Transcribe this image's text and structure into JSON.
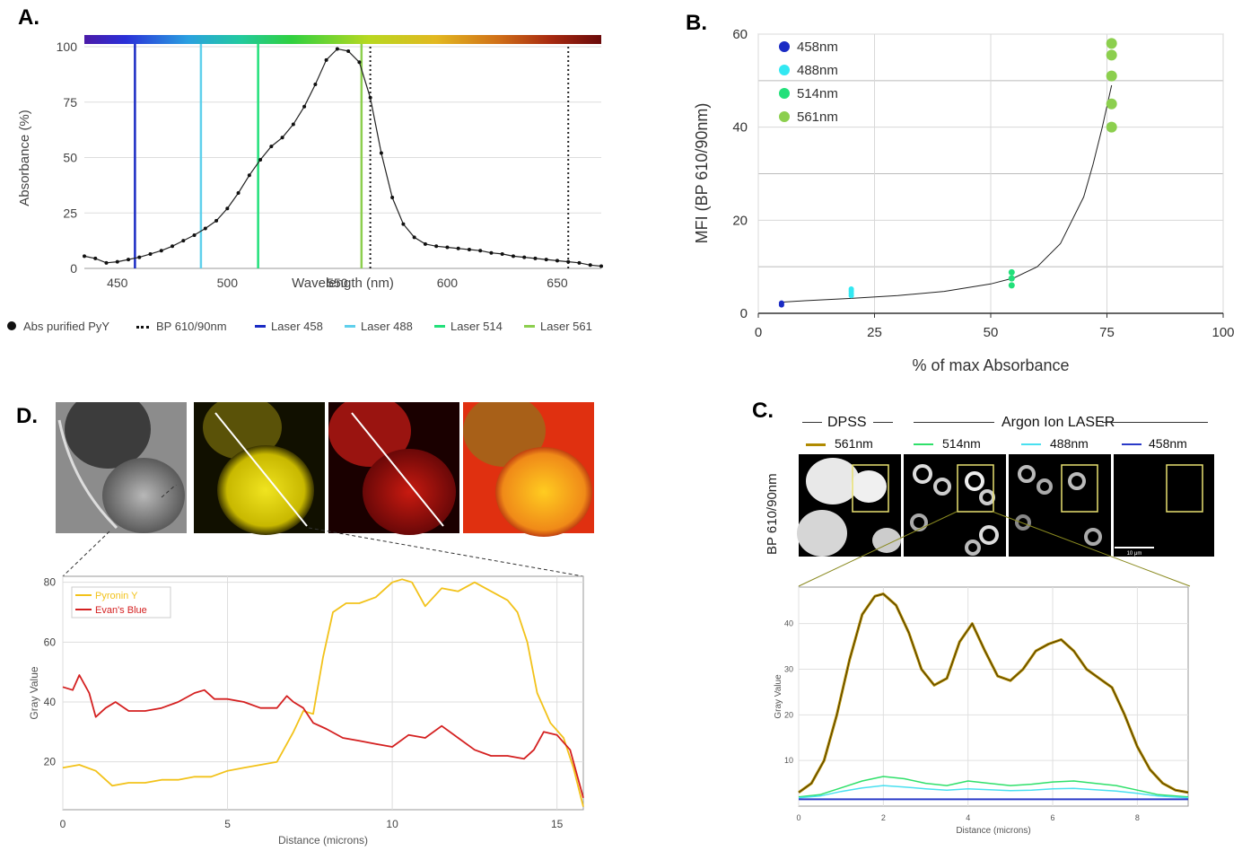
{
  "panels": {
    "a": "A.",
    "b": "B.",
    "c": "C.",
    "d": "D."
  },
  "colors": {
    "laser458": "#1a2bc4",
    "laser488": "#5fd0ec",
    "laser514": "#22e07a",
    "laser561": "#8ccf4e",
    "pyronin": "#f2c21a",
    "evans": "#d42020",
    "trace561": "#b08a00",
    "trace514": "#2fe06a",
    "trace488": "#49e0f0",
    "trace458": "#2a3ac8"
  },
  "chart_data": [
    {
      "id": "A",
      "type": "line",
      "xlabel": "Wavelength (nm)",
      "ylabel": "Absorbance (%)",
      "xlim": [
        435,
        670
      ],
      "ylim": [
        0,
        100
      ],
      "xticks": [
        "450",
        "500",
        "550",
        "600",
        "650"
      ],
      "yticks": [
        "0",
        "25",
        "50",
        "75",
        "100"
      ],
      "grid": true,
      "legend_position": "bottom",
      "legend": [
        "Abs purified PyY",
        "BP  610/90nm",
        "Laser 458",
        "Laser 488",
        "Laser 514",
        "Laser 561"
      ],
      "series": [
        {
          "name": "Abs purified PyY",
          "x": [
            435,
            440,
            445,
            450,
            455,
            460,
            465,
            470,
            475,
            480,
            485,
            490,
            495,
            500,
            505,
            510,
            515,
            520,
            525,
            530,
            535,
            540,
            545,
            550,
            555,
            560,
            565,
            570,
            575,
            580,
            585,
            590,
            595,
            600,
            605,
            610,
            615,
            620,
            625,
            630,
            635,
            640,
            645,
            650,
            655,
            660,
            665,
            670
          ],
          "y": [
            5.5,
            4.5,
            2.5,
            3,
            4,
            5,
            6.5,
            8,
            10,
            12.5,
            15,
            18,
            21.5,
            27,
            34,
            42,
            49,
            55,
            59,
            65,
            73,
            83,
            94,
            99,
            98,
            93,
            77,
            52,
            32,
            20,
            14,
            11,
            10,
            9.5,
            9,
            8.5,
            8,
            7,
            6.5,
            5.5,
            5,
            4.5,
            4,
            3.5,
            3,
            2.5,
            1.5,
            1
          ]
        }
      ],
      "vlines": [
        {
          "name": "Laser 458",
          "x": 458
        },
        {
          "name": "Laser 488",
          "x": 488
        },
        {
          "name": "Laser 514",
          "x": 514
        },
        {
          "name": "Laser 561",
          "x": 561
        },
        {
          "name": "BP  610/90nm",
          "x": 565
        },
        {
          "name": "BP  610/90nm",
          "x": 655
        }
      ]
    },
    {
      "id": "B",
      "type": "scatter",
      "xlabel": "% of max Absorbance",
      "ylabel": "MFI (BP 610/90nm)",
      "xlim": [
        0,
        100
      ],
      "ylim": [
        0,
        60
      ],
      "xticks": [
        "0",
        "25",
        "50",
        "75",
        "100"
      ],
      "yticks": [
        "0",
        "20",
        "40",
        "60"
      ],
      "grid": true,
      "legend_position": "top-left",
      "series": [
        {
          "name": "458nm",
          "x": [
            5,
            5
          ],
          "y": [
            1.8,
            2.2
          ]
        },
        {
          "name": "488nm",
          "x": [
            20,
            20,
            20,
            20
          ],
          "y": [
            3.8,
            4.3,
            4.8,
            5.2
          ]
        },
        {
          "name": "514nm",
          "x": [
            54.5,
            54.5,
            54.5
          ],
          "y": [
            6,
            7.5,
            8.8
          ]
        },
        {
          "name": "561nm",
          "x": [
            76,
            76,
            76,
            76,
            76
          ],
          "y": [
            40,
            45,
            51,
            55.5,
            58
          ]
        }
      ],
      "fit_curve": {
        "x": [
          5,
          10,
          20,
          30,
          40,
          50,
          55,
          60,
          65,
          70,
          72,
          74,
          76
        ],
        "y": [
          2.4,
          2.7,
          3.2,
          3.8,
          4.7,
          6.3,
          7.6,
          10,
          15,
          25,
          32,
          40,
          49
        ]
      }
    },
    {
      "id": "C",
      "type": "line",
      "xlabel": "Distance (microns)",
      "ylabel": "Gray Value",
      "xlim": [
        0,
        9.2
      ],
      "ylim": [
        0,
        48
      ],
      "xticks": [
        "0",
        "2",
        "4",
        "6",
        "8"
      ],
      "yticks": [
        "10",
        "20",
        "30",
        "40"
      ],
      "grid": true,
      "series": [
        {
          "name": "561nm",
          "x": [
            0,
            0.3,
            0.6,
            0.9,
            1.2,
            1.5,
            1.8,
            2.0,
            2.3,
            2.6,
            2.9,
            3.2,
            3.5,
            3.8,
            4.1,
            4.4,
            4.7,
            5.0,
            5.3,
            5.6,
            5.9,
            6.2,
            6.5,
            6.8,
            7.1,
            7.4,
            7.7,
            8.0,
            8.3,
            8.6,
            8.9,
            9.2
          ],
          "y": [
            3,
            5,
            10,
            20,
            32,
            42,
            46,
            46.5,
            44,
            38,
            30,
            26.5,
            28,
            36,
            40,
            34,
            28.5,
            27.5,
            30,
            34,
            35.5,
            36.5,
            34,
            30,
            28,
            26,
            20,
            13,
            8,
            5,
            3.5,
            3
          ]
        },
        {
          "name": "514nm",
          "x": [
            0,
            0.5,
            1.0,
            1.5,
            2.0,
            2.5,
            3.0,
            3.5,
            4.0,
            4.5,
            5.0,
            5.5,
            6.0,
            6.5,
            7.0,
            7.5,
            8.0,
            8.5,
            9.2
          ],
          "y": [
            2,
            2.5,
            4,
            5.5,
            6.5,
            6,
            5,
            4.5,
            5.5,
            5,
            4.5,
            4.8,
            5.3,
            5.5,
            5,
            4.5,
            3.5,
            2.5,
            2
          ]
        },
        {
          "name": "488nm",
          "x": [
            0,
            0.5,
            1.0,
            1.5,
            2.0,
            2.5,
            3.0,
            3.5,
            4.0,
            4.5,
            5.0,
            5.5,
            6.0,
            6.5,
            7.0,
            7.5,
            8.0,
            8.5,
            9.2
          ],
          "y": [
            1.8,
            2.2,
            3.2,
            4,
            4.5,
            4.2,
            3.8,
            3.5,
            3.8,
            3.6,
            3.4,
            3.5,
            3.8,
            3.9,
            3.6,
            3.3,
            2.8,
            2.2,
            1.8
          ]
        },
        {
          "name": "458nm",
          "x": [
            0,
            9.2
          ],
          "y": [
            1.5,
            1.5
          ]
        }
      ]
    },
    {
      "id": "D",
      "type": "line",
      "xlabel": "Distance (microns)",
      "ylabel": "Gray Value",
      "xlim": [
        0,
        15.8
      ],
      "ylim": [
        4,
        82
      ],
      "xticks": [
        "0",
        "5",
        "10",
        "15"
      ],
      "yticks": [
        "20",
        "40",
        "60",
        "80"
      ],
      "grid": true,
      "legend_position": "top-left",
      "series": [
        {
          "name": "Pyronin Y",
          "x": [
            0,
            0.5,
            1.0,
            1.5,
            2.0,
            2.5,
            3.0,
            3.5,
            4.0,
            4.5,
            5.0,
            5.5,
            6.0,
            6.5,
            7.0,
            7.3,
            7.6,
            7.9,
            8.2,
            8.6,
            9.0,
            9.5,
            10.0,
            10.3,
            10.6,
            11.0,
            11.5,
            12.0,
            12.5,
            13.0,
            13.5,
            13.8,
            14.1,
            14.4,
            14.8,
            15.2,
            15.5,
            15.8
          ],
          "y": [
            18,
            19,
            17,
            12,
            13,
            13,
            14,
            14,
            15,
            15,
            17,
            18,
            19,
            20,
            30,
            37,
            36,
            55,
            70,
            73,
            73,
            75,
            80,
            81,
            80,
            72,
            78,
            77,
            80,
            77,
            74,
            70,
            60,
            43,
            33,
            28,
            18,
            5
          ]
        },
        {
          "name": "Evan's Blue",
          "x": [
            0,
            0.3,
            0.5,
            0.8,
            1.0,
            1.3,
            1.6,
            2.0,
            2.5,
            3.0,
            3.5,
            4.0,
            4.3,
            4.6,
            5.0,
            5.5,
            6.0,
            6.5,
            6.8,
            7.0,
            7.3,
            7.6,
            8.0,
            8.5,
            9.0,
            9.5,
            10.0,
            10.5,
            11.0,
            11.5,
            12.0,
            12.5,
            13.0,
            13.5,
            14.0,
            14.3,
            14.6,
            15.0,
            15.4,
            15.8
          ],
          "y": [
            45,
            44,
            49,
            43,
            35,
            38,
            40,
            37,
            37,
            38,
            40,
            43,
            44,
            41,
            41,
            40,
            38,
            38,
            42,
            40,
            38,
            33,
            31,
            28,
            27,
            26,
            25,
            29,
            28,
            32,
            28,
            24,
            22,
            22,
            21,
            24,
            30,
            29,
            24,
            8
          ]
        }
      ]
    }
  ],
  "panel_c": {
    "header_dpss": "DPSS",
    "header_argon": "Argon Ion LASER",
    "legend": [
      "561nm",
      "514nm",
      "488nm",
      "458nm"
    ],
    "row_label": "BP 610/90nm",
    "scale_bar": "10 μm"
  }
}
